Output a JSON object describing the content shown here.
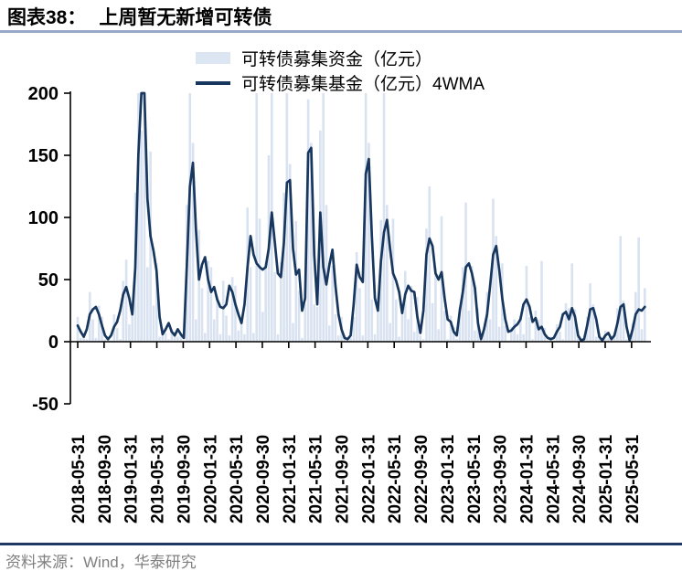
{
  "header": {
    "label": "图表38：",
    "title": "上周暂无新增可转债"
  },
  "legend": [
    {
      "label": "可转债募集资金（亿元）",
      "type": "area",
      "color": "#dce6f3"
    },
    {
      "label": "可转债募集基金（亿元）4WMA",
      "type": "line",
      "color": "#17375e"
    }
  ],
  "footer": {
    "source": "资料来源：Wind，华泰研究"
  },
  "colors": {
    "bar_fill": "#d9e2f0",
    "line_stroke": "#17375e",
    "axis": "#000000",
    "title_rule": "#96a9c7",
    "footer_rule": "#1f3864",
    "footer_text": "#7f7f7f"
  },
  "chart_data": {
    "type": "combo",
    "x_start": "2018-05-31",
    "x_step_weeks": 2,
    "x_tick_labels": [
      "2018-05-31",
      "2018-09-30",
      "2019-01-31",
      "2019-05-31",
      "2019-09-30",
      "2020-01-31",
      "2020-05-31",
      "2020-09-30",
      "2021-01-31",
      "2021-05-31",
      "2021-09-30",
      "2022-01-31",
      "2022-05-31",
      "2022-09-30",
      "2023-01-31",
      "2023-05-31",
      "2023-09-30",
      "2024-01-31",
      "2024-05-31",
      "2024-09-30",
      "2025-01-31",
      "2025-05-31"
    ],
    "y_ticks": [
      200,
      150,
      100,
      50,
      0,
      -50
    ],
    "ylim": [
      -50,
      200
    ],
    "unit": "亿元",
    "series": [
      {
        "name": "可转债募集资金（亿元）",
        "type": "bar",
        "color": "#d9e2f0",
        "values": [
          20,
          3,
          4,
          2,
          40,
          18,
          3,
          29,
          20,
          2,
          2,
          1,
          22,
          11,
          2,
          49,
          66,
          14,
          24,
          120,
          200,
          170,
          200,
          60,
          153,
          29,
          63,
          4,
          11,
          7,
          2,
          10,
          8,
          4,
          7,
          1,
          110,
          200,
          160,
          18,
          90,
          43,
          7,
          65,
          60,
          18,
          37,
          6,
          49,
          21,
          5,
          52,
          45,
          9,
          17,
          6,
          108,
          60,
          7,
          200,
          99,
          24,
          64,
          150,
          200,
          56,
          6,
          64,
          120,
          200,
          143,
          15,
          97,
          41,
          3,
          30,
          195,
          160,
          30,
          28,
          170,
          200,
          110,
          13,
          61,
          22,
          5,
          20,
          5,
          2,
          3,
          20,
          72,
          43,
          5,
          200,
          160,
          34,
          6,
          36,
          98,
          200,
          110,
          15,
          99,
          34,
          4,
          30,
          57,
          18,
          45,
          8,
          36,
          5,
          2,
          91,
          125,
          31,
          60,
          10,
          101,
          25,
          2,
          21,
          12,
          2,
          28,
          60,
          112,
          25,
          61,
          9,
          27,
          1,
          11,
          40,
          18,
          115,
          85,
          12,
          63,
          13,
          1,
          12,
          18,
          6,
          20,
          6,
          61,
          20,
          2,
          25,
          18,
          65,
          11,
          1,
          4,
          1,
          14,
          8,
          2,
          31,
          27,
          63,
          26,
          9,
          0,
          3,
          20,
          47,
          30,
          4,
          7,
          1,
          9,
          3,
          1,
          7,
          27,
          85,
          33,
          2,
          1,
          15,
          40,
          84,
          10,
          43
        ]
      },
      {
        "name": "可转债募集基金（亿元）4WMA",
        "type": "line",
        "color": "#17375e",
        "values": [
          13,
          8,
          4,
          10,
          22,
          26,
          28,
          22,
          13,
          5,
          2,
          5,
          12,
          16,
          25,
          38,
          44,
          35,
          22,
          60,
          150,
          200,
          200,
          115,
          85,
          73,
          57,
          20,
          6,
          10,
          15,
          8,
          5,
          10,
          6,
          3,
          62,
          125,
          144,
          90,
          50,
          62,
          68,
          50,
          40,
          44,
          34,
          28,
          27,
          30,
          45,
          40,
          30,
          22,
          15,
          30,
          60,
          85,
          70,
          63,
          60,
          58,
          60,
          75,
          104,
          80,
          55,
          52,
          80,
          128,
          130,
          75,
          54,
          58,
          25,
          35,
          152,
          156,
          70,
          30,
          104,
          60,
          46,
          62,
          74,
          45,
          22,
          10,
          3,
          2,
          5,
          30,
          62,
          52,
          48,
          135,
          147,
          85,
          35,
          25,
          65,
          88,
          98,
          75,
          55,
          49,
          40,
          23,
          38,
          45,
          41,
          40,
          20,
          7,
          25,
          70,
          83,
          77,
          55,
          50,
          56,
          35,
          18,
          16,
          8,
          5,
          25,
          40,
          60,
          63,
          55,
          43,
          15,
          2,
          10,
          22,
          45,
          70,
          77,
          58,
          35,
          18,
          8,
          9,
          12,
          14,
          18,
          30,
          34,
          28,
          16,
          19,
          10,
          12,
          6,
          3,
          2,
          3,
          8,
          12,
          22,
          24,
          18,
          27,
          20,
          5,
          1,
          2,
          13,
          26,
          27,
          18,
          4,
          1,
          5,
          7,
          2,
          5,
          15,
          28,
          30,
          12,
          1,
          10,
          22,
          26,
          25,
          28
        ]
      }
    ]
  }
}
